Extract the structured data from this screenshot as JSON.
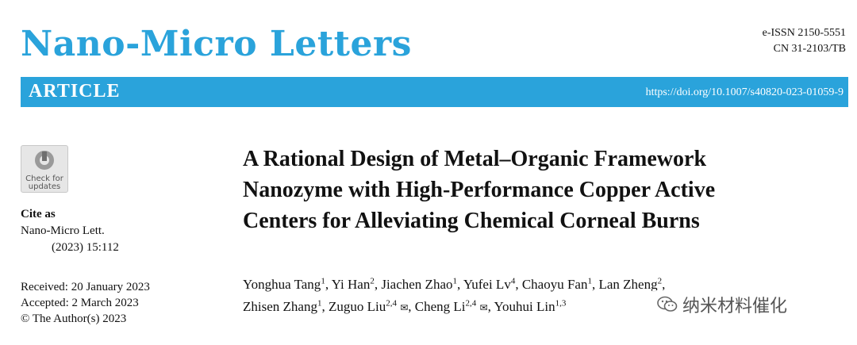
{
  "header": {
    "journal_name": "Nano-Micro Letters",
    "eissn": "e-ISSN 2150-5551",
    "cn": "CN 31-2103/TB"
  },
  "banner": {
    "article_type": "ARTICLE",
    "doi": "https://doi.org/10.1007/s40820-023-01059-9",
    "color": "#2aa3db"
  },
  "badge": {
    "line1": "Check for",
    "line2": "updates"
  },
  "cite": {
    "heading": "Cite as",
    "journal": "Nano-Micro Lett.",
    "volume": "(2023) 15:112"
  },
  "dates": {
    "received": "Received: 20 January 2023",
    "accepted": "Accepted: 2 March 2023",
    "copyright": "© The Author(s) 2023"
  },
  "title": {
    "line1": "A Rational Design of Metal–Organic Framework",
    "line2": "Nanozyme with High-Performance Copper Active",
    "line3": "Centers for Alleviating Chemical Corneal Burns"
  },
  "authors": [
    {
      "name": "Yonghua Tang",
      "aff": "1"
    },
    {
      "name": "Yi Han",
      "aff": "2"
    },
    {
      "name": "Jiachen Zhao",
      "aff": "1"
    },
    {
      "name": "Yufei Lv",
      "aff": "4"
    },
    {
      "name": "Chaoyu Fan",
      "aff": "1"
    },
    {
      "name": "Lan Zheng",
      "aff": "2"
    },
    {
      "name": "Zhisen Zhang",
      "aff": "1"
    },
    {
      "name": "Zuguo Liu",
      "aff": "2,4"
    },
    {
      "name": "Cheng Li",
      "aff": "2,4"
    },
    {
      "name": "Youhui Lin",
      "aff": "1,3"
    }
  ],
  "watermark": {
    "text": "纳米材料催化"
  }
}
